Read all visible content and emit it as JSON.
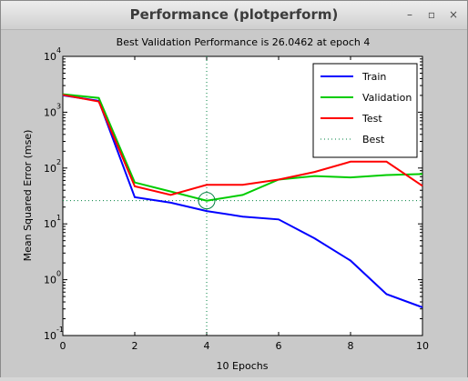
{
  "window": {
    "title": "Performance (plotperform)",
    "buttons": [
      "–",
      "▫",
      "×"
    ]
  },
  "chart_data": {
    "type": "line",
    "title": "Best Validation Performance is 26.0462 at epoch 4",
    "xlabel": "10 Epochs",
    "ylabel": "Mean Squared Error  (mse)",
    "xlim": [
      0,
      10
    ],
    "ylim": [
      0.1,
      10000
    ],
    "yscale": "log",
    "x_ticks": [
      "0",
      "2",
      "4",
      "6",
      "8",
      "10"
    ],
    "y_ticks": [
      "10",
      "10",
      "10",
      "10",
      "10",
      "10"
    ],
    "y_tick_exponents": [
      "-1",
      "0",
      "1",
      "2",
      "3",
      "4"
    ],
    "x": [
      0,
      1,
      2,
      3,
      4,
      5,
      6,
      7,
      8,
      9,
      10
    ],
    "series": [
      {
        "name": "Train",
        "color": "#0000ff",
        "values": [
          2000,
          1600,
          30,
          24,
          17,
          13.5,
          12,
          5.5,
          2.2,
          0.55,
          0.32
        ]
      },
      {
        "name": "Validation",
        "color": "#00cc00",
        "values": [
          2100,
          1800,
          55,
          38,
          26.0462,
          33,
          62,
          72,
          68,
          75,
          78
        ]
      },
      {
        "name": "Test",
        "color": "#ff0000",
        "values": [
          2050,
          1550,
          47,
          33,
          50,
          50,
          62,
          85,
          130,
          130,
          48
        ]
      }
    ],
    "best": {
      "name": "Best",
      "color": "#008040",
      "epoch": 4,
      "value": 26.0462
    },
    "legend_position": "top-right",
    "grid": false
  }
}
